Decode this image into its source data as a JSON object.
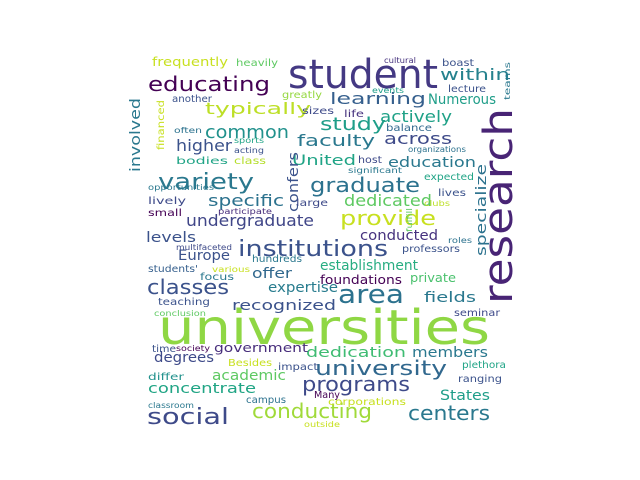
{
  "wordcloud": {
    "words": [
      {
        "text": "universities",
        "color": "#8fd744"
      },
      {
        "text": "student",
        "color": "#443983"
      },
      {
        "text": "research",
        "color": "#482475"
      },
      {
        "text": "area",
        "color": "#2c728e"
      },
      {
        "text": "institutions",
        "color": "#3b528b"
      },
      {
        "text": "educating",
        "color": "#440154"
      },
      {
        "text": "university",
        "color": "#31688e"
      },
      {
        "text": "conducting",
        "color": "#a0da39"
      },
      {
        "text": "programs",
        "color": "#3e4a89"
      },
      {
        "text": "social",
        "color": "#3e4a89"
      },
      {
        "text": "centers",
        "color": "#2a788e"
      },
      {
        "text": "graduate",
        "color": "#2c728e"
      },
      {
        "text": "provide",
        "color": "#c8e020"
      },
      {
        "text": "variety",
        "color": "#2a788e"
      },
      {
        "text": "classes",
        "color": "#3b528b"
      },
      {
        "text": "common",
        "color": "#21918c"
      },
      {
        "text": "study",
        "color": "#1f9e89"
      },
      {
        "text": "within",
        "color": "#26828e"
      },
      {
        "text": "typically",
        "color": "#bddf26"
      },
      {
        "text": "learning",
        "color": "#355f8d"
      },
      {
        "text": "across",
        "color": "#3e4a89"
      },
      {
        "text": "faculty",
        "color": "#2a788e"
      },
      {
        "text": "higher",
        "color": "#3b528b"
      },
      {
        "text": "specific",
        "color": "#2c728e"
      },
      {
        "text": "undergraduate",
        "color": "#404688"
      },
      {
        "text": "dedicated",
        "color": "#5ec962"
      },
      {
        "text": "actively",
        "color": "#1fa187"
      },
      {
        "text": "Numerous",
        "color": "#1f9e89"
      },
      {
        "text": "education",
        "color": "#2a788e"
      },
      {
        "text": "United",
        "color": "#20a486"
      },
      {
        "text": "specialize",
        "color": "#2c728e"
      },
      {
        "text": "confers",
        "color": "#3b528b"
      },
      {
        "text": "involved",
        "color": "#2a788e"
      },
      {
        "text": "levels",
        "color": "#3b528b"
      },
      {
        "text": "conducted",
        "color": "#46327e"
      },
      {
        "text": "establishment",
        "color": "#27ad81"
      },
      {
        "text": "Europe",
        "color": "#3b528b"
      },
      {
        "text": "offer",
        "color": "#31688e"
      },
      {
        "text": "expertise",
        "color": "#287c8e"
      },
      {
        "text": "recognized",
        "color": "#3b528b"
      },
      {
        "text": "fields",
        "color": "#2a788e"
      },
      {
        "text": "degrees",
        "color": "#3e4a89"
      },
      {
        "text": "academic",
        "color": "#5ec962"
      },
      {
        "text": "concentrate",
        "color": "#21a585"
      },
      {
        "text": "dedication",
        "color": "#3fbc73"
      },
      {
        "text": "members",
        "color": "#2a788e"
      },
      {
        "text": "States",
        "color": "#1f9e89"
      },
      {
        "text": "government",
        "color": "#472d7b"
      },
      {
        "text": "foundations",
        "color": "#440154"
      },
      {
        "text": "private",
        "color": "#4ac16d"
      },
      {
        "text": "frequently",
        "color": "#c8e020"
      },
      {
        "text": "heavily",
        "color": "#5ec962"
      },
      {
        "text": "another",
        "color": "#3b528b"
      },
      {
        "text": "greatly",
        "color": "#95d840"
      },
      {
        "text": "sizes",
        "color": "#3e4a89"
      },
      {
        "text": "life",
        "color": "#46327e"
      },
      {
        "text": "events",
        "color": "#1f9e89"
      },
      {
        "text": "lecture",
        "color": "#3b528b"
      },
      {
        "text": "cultural",
        "color": "#46327e"
      },
      {
        "text": "boast",
        "color": "#3b528b"
      },
      {
        "text": "teams",
        "color": "#2a788e"
      },
      {
        "text": "organizations",
        "color": "#2c728e"
      },
      {
        "text": "balance",
        "color": "#31688e"
      },
      {
        "text": "host",
        "color": "#3e4a89"
      },
      {
        "text": "significant",
        "color": "#2a788e"
      },
      {
        "text": "expected",
        "color": "#20a486"
      },
      {
        "text": "lives",
        "color": "#3b528b"
      },
      {
        "text": "clubs",
        "color": "#bddf26"
      },
      {
        "text": "often",
        "color": "#2c728e"
      },
      {
        "text": "sports",
        "color": "#20a486"
      },
      {
        "text": "acting",
        "color": "#3b528b"
      },
      {
        "text": "bodies",
        "color": "#20a486"
      },
      {
        "text": "class",
        "color": "#b5de2b"
      },
      {
        "text": "financed",
        "color": "#c8e020"
      },
      {
        "text": "opportunities",
        "color": "#2a788e"
      },
      {
        "text": "lively",
        "color": "#3e4a89"
      },
      {
        "text": "small",
        "color": "#440154"
      },
      {
        "text": "participate",
        "color": "#472d7b"
      },
      {
        "text": "large",
        "color": "#3e4a89"
      },
      {
        "text": "fulfill",
        "color": "#5ec962"
      },
      {
        "text": "multifaceted",
        "color": "#3e4a89"
      },
      {
        "text": "roles",
        "color": "#2c728e"
      },
      {
        "text": "professors",
        "color": "#3b528b"
      },
      {
        "text": "hundreds",
        "color": "#2a788e"
      },
      {
        "text": "students'",
        "color": "#355f8d"
      },
      {
        "text": "various",
        "color": "#c8e020"
      },
      {
        "text": "focus",
        "color": "#2a788e"
      },
      {
        "text": "teaching",
        "color": "#3b528b"
      },
      {
        "text": "conclusion",
        "color": "#5ec962"
      },
      {
        "text": "seminar",
        "color": "#3e4a89"
      },
      {
        "text": "time",
        "color": "#3b528b"
      },
      {
        "text": "society",
        "color": "#440154"
      },
      {
        "text": "Besides",
        "color": "#c8e020"
      },
      {
        "text": "differ",
        "color": "#21918c"
      },
      {
        "text": "impact",
        "color": "#3b528b"
      },
      {
        "text": "campus",
        "color": "#2c728e"
      },
      {
        "text": "classroom",
        "color": "#2a788e"
      },
      {
        "text": "Many",
        "color": "#440154"
      },
      {
        "text": "outside",
        "color": "#c8e020"
      },
      {
        "text": "corporations",
        "color": "#c8e020"
      },
      {
        "text": "plethora",
        "color": "#20a486"
      },
      {
        "text": "ranging",
        "color": "#3b528b"
      }
    ]
  }
}
